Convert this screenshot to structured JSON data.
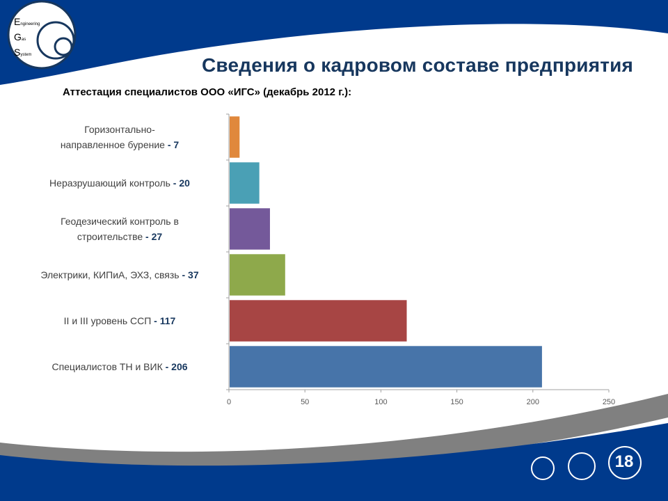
{
  "slide": {
    "logo_lines": [
      {
        "big": "E",
        "small": "ngineering"
      },
      {
        "big": "G",
        "small": "as"
      },
      {
        "big": "S",
        "small": "ystem"
      }
    ],
    "title": "Сведения о кадровом составе предприятия",
    "subtitle": "Аттестация специалистов ООО «ИГС» (декабрь 2012 г.):",
    "page_number": "18",
    "colors": {
      "background_band": "#003a8c",
      "title": "#17375e"
    }
  },
  "chart_data": {
    "type": "bar",
    "orientation": "horizontal",
    "categories": [
      {
        "text": "Горизонтально-\nнаправленное бурение",
        "value": 7,
        "color": "#e0883c"
      },
      {
        "text": "Неразрушающий контроль",
        "value": 20,
        "color": "#4aa0b5"
      },
      {
        "text": "Геодезический контроль в\nстроительстве",
        "value": 27,
        "color": "#74599a"
      },
      {
        "text": "Электрики, КИПиА, ЭХЗ, связь",
        "value": 37,
        "color": "#8ea94b"
      },
      {
        "text": "II и III уровень ССП",
        "value": 117,
        "color": "#a74544"
      },
      {
        "text": "Специалистов ТН и ВИК",
        "value": 206,
        "color": "#4774a9"
      }
    ],
    "value_label_prefix": " - ",
    "xlim": [
      0,
      250
    ],
    "xticks": [
      "0",
      "50",
      "100",
      "150",
      "200",
      "250"
    ],
    "grid": false
  }
}
